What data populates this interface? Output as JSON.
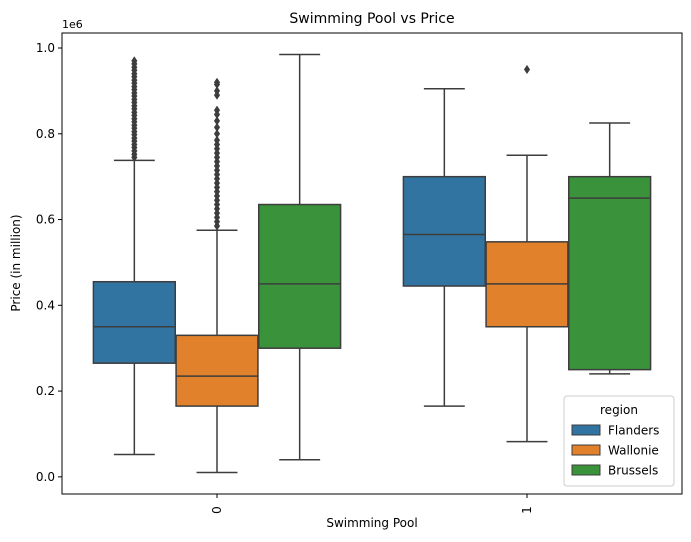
{
  "chart_data": {
    "type": "boxplot",
    "title": "Swimming Pool vs Price",
    "xlabel": "Swimming Pool",
    "ylabel": "Price (in million)",
    "y_offset_label": "1e6",
    "ylim": [
      -0.04,
      1.035
    ],
    "yticks": [
      0.0,
      0.2,
      0.4,
      0.6,
      0.8,
      1.0
    ],
    "ytick_labels": [
      "0.0",
      "0.2",
      "0.4",
      "0.6",
      "0.8",
      "1.0"
    ],
    "categories": [
      "0",
      "1"
    ],
    "grid": false,
    "legend": {
      "title": "region",
      "placement": "lower right"
    },
    "series": [
      {
        "name": "Flanders",
        "color": "#3274a1",
        "boxes": [
          {
            "category": "0",
            "whislo": 0.052,
            "q1": 0.265,
            "med": 0.35,
            "q3": 0.455,
            "whishi": 0.738,
            "fliers": [
              0.745,
              0.752,
              0.76,
              0.768,
              0.775,
              0.783,
              0.79,
              0.798,
              0.805,
              0.813,
              0.82,
              0.828,
              0.835,
              0.843,
              0.85,
              0.858,
              0.865,
              0.873,
              0.88,
              0.888,
              0.895,
              0.903,
              0.91,
              0.918,
              0.925,
              0.933,
              0.94,
              0.948,
              0.955,
              0.963,
              0.97
            ]
          },
          {
            "category": "1",
            "whislo": 0.165,
            "q1": 0.445,
            "med": 0.565,
            "q3": 0.7,
            "whishi": 0.905,
            "fliers": []
          }
        ]
      },
      {
        "name": "Wallonie",
        "color": "#e1812c",
        "boxes": [
          {
            "category": "0",
            "whislo": 0.01,
            "q1": 0.165,
            "med": 0.235,
            "q3": 0.33,
            "whishi": 0.575,
            "fliers": [
              0.585,
              0.595,
              0.605,
              0.615,
              0.625,
              0.635,
              0.645,
              0.655,
              0.665,
              0.675,
              0.685,
              0.695,
              0.705,
              0.715,
              0.725,
              0.735,
              0.745,
              0.755,
              0.765,
              0.775,
              0.785,
              0.8,
              0.815,
              0.83,
              0.845,
              0.855,
              0.89,
              0.9,
              0.915,
              0.92
            ]
          },
          {
            "category": "1",
            "whislo": 0.082,
            "q1": 0.35,
            "med": 0.45,
            "q3": 0.548,
            "whishi": 0.75,
            "fliers": [
              0.95
            ]
          }
        ]
      },
      {
        "name": "Brussels",
        "color": "#3a923a",
        "boxes": [
          {
            "category": "0",
            "whislo": 0.04,
            "q1": 0.3,
            "med": 0.45,
            "q3": 0.635,
            "whishi": 0.985,
            "fliers": []
          },
          {
            "category": "1",
            "whislo": 0.24,
            "q1": 0.25,
            "med": 0.65,
            "q3": 0.7,
            "whishi": 0.825,
            "fliers": []
          }
        ]
      }
    ]
  }
}
